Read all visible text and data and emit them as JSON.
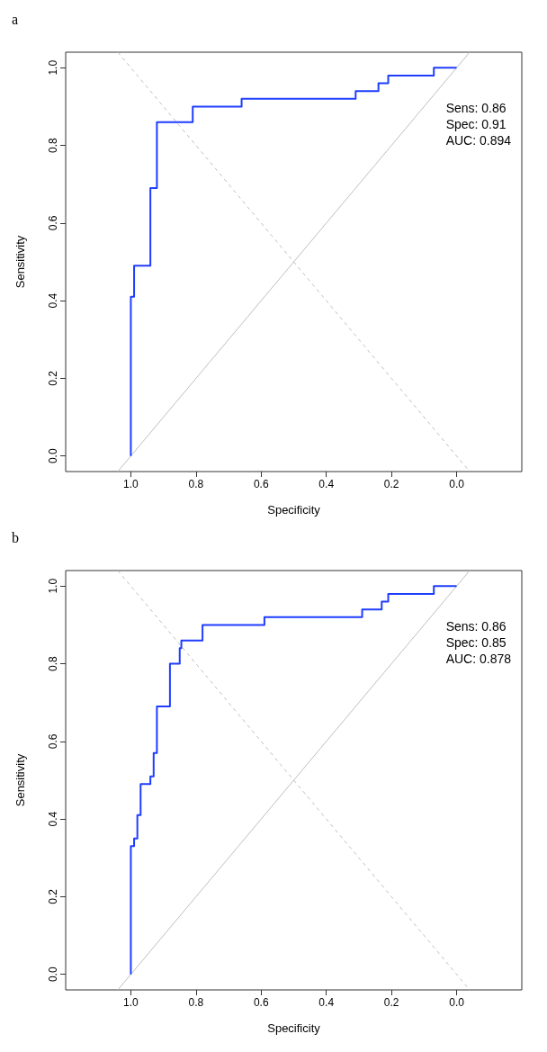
{
  "chart_data": [
    {
      "type": "line",
      "title": "a",
      "xlabel": "Specificity",
      "ylabel": "Sensitivity",
      "xlim": [
        1.2,
        -0.2
      ],
      "ylim": [
        -0.04,
        1.04
      ],
      "xticks": [
        {
          "value": 1,
          "label": "1.0"
        },
        {
          "value": 0.8,
          "label": "0.8"
        },
        {
          "value": 0.6,
          "label": "0.6"
        },
        {
          "value": 0.4,
          "label": "0.4"
        },
        {
          "value": 0.2,
          "label": "0.2"
        },
        {
          "value": 0,
          "label": "0.0"
        }
      ],
      "yticks": [
        {
          "value": 0,
          "label": "0.0"
        },
        {
          "value": 0.2,
          "label": "0.2"
        },
        {
          "value": 0.4,
          "label": "0.4"
        },
        {
          "value": 0.6,
          "label": "0.6"
        },
        {
          "value": 0.8,
          "label": "0.8"
        },
        {
          "value": 1,
          "label": "1.0"
        }
      ],
      "grid": false,
      "marker": "none",
      "annotations": [
        "Sens: 0.86",
        "Spec: 0.91",
        "AUC: 0.894"
      ],
      "series": [
        {
          "color": "#bebebe",
          "line_style": "solid",
          "x": [
            1.04,
            -0.04
          ],
          "values": [
            -0.04,
            1.04
          ]
        },
        {
          "color": "#bebebe",
          "line_style": "dashed",
          "x": [
            1.04,
            -0.04
          ],
          "values": [
            1.04,
            -0.04
          ]
        },
        {
          "color": "#1f3dff",
          "line_style": "solid",
          "x": [
            1,
            1,
            0.99,
            0.99,
            0.94,
            0.94,
            0.92,
            0.92,
            0.81,
            0.81,
            0.66,
            0.66,
            0.31,
            0.31,
            0.24,
            0.24,
            0.21,
            0.21,
            0.07,
            0.07,
            0
          ],
          "values": [
            0,
            0.41,
            0.41,
            0.49,
            0.49,
            0.69,
            0.69,
            0.86,
            0.86,
            0.9,
            0.9,
            0.92,
            0.92,
            0.94,
            0.94,
            0.96,
            0.96,
            0.98,
            0.98,
            1,
            1
          ]
        }
      ]
    },
    {
      "type": "line",
      "title": "b",
      "xlabel": "Specificity",
      "ylabel": "Sensitivity",
      "xlim": [
        1.2,
        -0.2
      ],
      "ylim": [
        -0.04,
        1.04
      ],
      "xticks": [
        {
          "value": 1,
          "label": "1.0"
        },
        {
          "value": 0.8,
          "label": "0.8"
        },
        {
          "value": 0.6,
          "label": "0.6"
        },
        {
          "value": 0.4,
          "label": "0.4"
        },
        {
          "value": 0.2,
          "label": "0.2"
        },
        {
          "value": 0,
          "label": "0.0"
        }
      ],
      "yticks": [
        {
          "value": 0,
          "label": "0.0"
        },
        {
          "value": 0.2,
          "label": "0.2"
        },
        {
          "value": 0.4,
          "label": "0.4"
        },
        {
          "value": 0.6,
          "label": "0.6"
        },
        {
          "value": 0.8,
          "label": "0.8"
        },
        {
          "value": 1,
          "label": "1.0"
        }
      ],
      "grid": false,
      "marker": "none",
      "annotations": [
        "Sens: 0.86",
        "Spec: 0.85",
        "AUC: 0.878"
      ],
      "series": [
        {
          "color": "#bebebe",
          "line_style": "solid",
          "x": [
            1.04,
            -0.04
          ],
          "values": [
            -0.04,
            1.04
          ]
        },
        {
          "color": "#bebebe",
          "line_style": "dashed",
          "x": [
            1.04,
            -0.04
          ],
          "values": [
            1.04,
            -0.04
          ]
        },
        {
          "color": "#1f3dff",
          "line_style": "solid",
          "x": [
            1,
            1,
            0.99,
            0.99,
            0.98,
            0.98,
            0.97,
            0.97,
            0.94,
            0.94,
            0.93,
            0.93,
            0.92,
            0.92,
            0.88,
            0.88,
            0.85,
            0.85,
            0.845,
            0.845,
            0.78,
            0.78,
            0.59,
            0.59,
            0.29,
            0.29,
            0.23,
            0.23,
            0.21,
            0.21,
            0.07,
            0.07,
            0
          ],
          "values": [
            0,
            0.33,
            0.33,
            0.35,
            0.35,
            0.41,
            0.41,
            0.49,
            0.49,
            0.51,
            0.51,
            0.57,
            0.57,
            0.69,
            0.69,
            0.8,
            0.8,
            0.84,
            0.84,
            0.86,
            0.86,
            0.9,
            0.9,
            0.92,
            0.92,
            0.94,
            0.94,
            0.96,
            0.96,
            0.98,
            0.98,
            1,
            1
          ]
        }
      ]
    }
  ]
}
